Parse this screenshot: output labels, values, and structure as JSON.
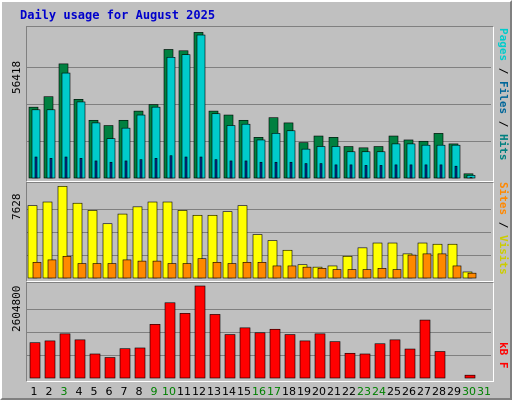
{
  "title": "Daily usage for August 2025",
  "colors": {
    "background": "#c0c0c0",
    "title": "#0000cc",
    "hits": "#00cccc",
    "files": "#006699",
    "pages": "#00cccc",
    "visits": "#ffff00",
    "sites": "#ff8800",
    "kbytes": "#ff0000",
    "bar_dark": "#008040",
    "weekend_label": "#008000",
    "weekday_label": "#000000"
  },
  "labels": {
    "hits_max": "56418",
    "visits_max": "7628",
    "kbytes_max": "2604800",
    "right_top_pages": "Pages",
    "right_top_files": "Files",
    "right_top_hits": "Hits",
    "right_top_sep": " / ",
    "right_mid_sites": "Sites",
    "right_mid_visits": "Visits",
    "right_mid_sep": " / ",
    "right_bottom": "kB F"
  },
  "chart_data": {
    "type": "bar",
    "title": "Daily usage for August 2025",
    "categories": [
      "1",
      "2",
      "3",
      "4",
      "5",
      "6",
      "7",
      "8",
      "9",
      "10",
      "11",
      "12",
      "13",
      "14",
      "15",
      "16",
      "17",
      "18",
      "19",
      "20",
      "21",
      "22",
      "23",
      "24",
      "25",
      "26",
      "27",
      "28",
      "29",
      "30",
      "31"
    ],
    "weekend_days": [
      "3",
      "9",
      "10",
      "16",
      "17",
      "23",
      "24",
      "30",
      "31"
    ],
    "panels": [
      {
        "name": "hits-files-pages",
        "ymax": 56418,
        "series": [
          {
            "name": "Hits",
            "values": [
              27000,
              31000,
              43500,
              30000,
              22000,
              20000,
              22000,
              25500,
              28000,
              49000,
              48500,
              55500,
              25500,
              24000,
              22000,
              15500,
              23000,
              21000,
              13500,
              16000,
              15500,
              12000,
              11500,
              12000,
              16000,
              14500,
              14000,
              17000,
              13000,
              1600,
              null
            ]
          },
          {
            "name": "Files",
            "values": [
              26000,
              26000,
              40000,
              29000,
              21000,
              15000,
              19000,
              24000,
              27000,
              46000,
              47000,
              54500,
              24500,
              20000,
              20500,
              14500,
              17000,
              18000,
              11000,
              12000,
              12000,
              10000,
              10000,
              10000,
              13000,
              13000,
              12500,
              12500,
              12500,
              1000,
              null
            ]
          },
          {
            "name": "Pages",
            "values": [
              8000,
              7500,
              8000,
              7500,
              6500,
              6000,
              6500,
              7000,
              7500,
              8500,
              8000,
              8000,
              7000,
              6500,
              6500,
              6000,
              6000,
              6000,
              5500,
              5500,
              5000,
              5000,
              4800,
              4800,
              5000,
              5000,
              5000,
              5000,
              4500,
              200,
              null
            ]
          }
        ]
      },
      {
        "name": "visits-sites",
        "ymax": 7628,
        "series": [
          {
            "name": "Visits",
            "values": [
              6000,
              6300,
              7600,
              6200,
              5600,
              4500,
              5300,
              5900,
              6300,
              6300,
              5600,
              5200,
              5200,
              5500,
              6000,
              3600,
              3100,
              2300,
              1100,
              900,
              1000,
              1800,
              2500,
              2900,
              2900,
              2000,
              2900,
              2800,
              2800,
              500,
              null
            ]
          },
          {
            "name": "Sites",
            "values": [
              1300,
              1500,
              1800,
              1200,
              1200,
              1200,
              1500,
              1400,
              1400,
              1200,
              1200,
              1600,
              1300,
              1200,
              1300,
              1300,
              1000,
              1000,
              900,
              800,
              700,
              700,
              700,
              800,
              700,
              1900,
              2000,
              2000,
              1000,
              400,
              null
            ]
          }
        ]
      },
      {
        "name": "kbytes",
        "ymax": 2604800,
        "series": [
          {
            "name": "kB F",
            "values": [
              1000000,
              1050000,
              1250000,
              1080000,
              680000,
              580000,
              830000,
              850000,
              1520000,
              2130000,
              1830000,
              2604800,
              1800000,
              1230000,
              1420000,
              1280000,
              1380000,
              1230000,
              1050000,
              1250000,
              1030000,
              700000,
              680000,
              970000,
              1080000,
              820000,
              1640000,
              750000,
              null,
              80000,
              null
            ]
          }
        ]
      }
    ]
  }
}
